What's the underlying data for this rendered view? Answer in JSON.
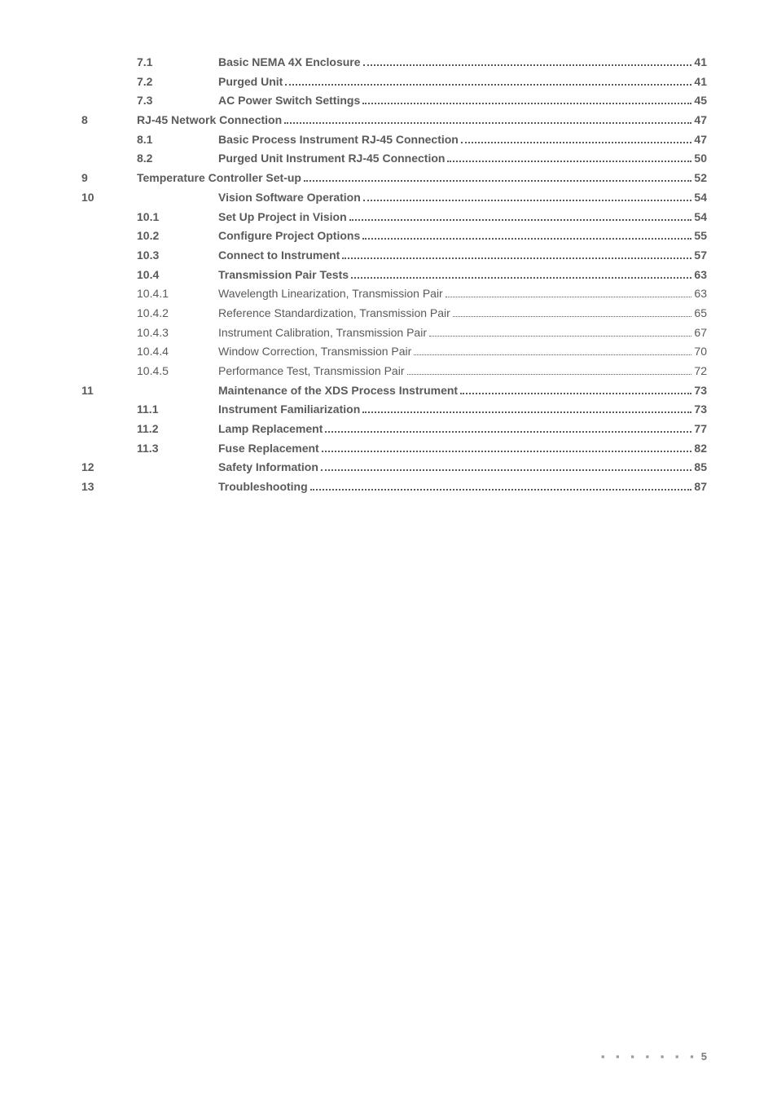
{
  "toc": [
    {
      "type": "sub",
      "num": "",
      "sub": "7.1",
      "title": "Basic NEMA 4X Enclosure",
      "page": "41",
      "bold": true
    },
    {
      "type": "sub",
      "num": "",
      "sub": "7.2",
      "title": "Purged Unit ",
      "page": "41",
      "bold": true
    },
    {
      "type": "sub",
      "num": "",
      "sub": "7.3",
      "title": "AC Power Switch Settings ",
      "page": "45",
      "bold": true
    },
    {
      "type": "chapter",
      "num": "8",
      "sub": "",
      "title": "RJ-45 Network Connection",
      "page": "47",
      "bold": true
    },
    {
      "type": "sub",
      "num": "",
      "sub": "8.1",
      "title": "Basic Process Instrument RJ-45 Connection",
      "page": "47",
      "bold": true
    },
    {
      "type": "sub",
      "num": "",
      "sub": "8.2",
      "title": "Purged Unit Instrument RJ-45 Connection",
      "page": "50",
      "bold": true
    },
    {
      "type": "chapter",
      "num": "9",
      "sub": "",
      "title": "Temperature Controller Set-up",
      "page": "52",
      "bold": true
    },
    {
      "type": "chapter",
      "num": "10",
      "sub": "",
      "title": "Vision Software Operation",
      "page": "54",
      "bold": true,
      "title_indent": true
    },
    {
      "type": "sub",
      "num": "",
      "sub": "10.1",
      "title": "Set Up Project in Vision ",
      "page": "54",
      "bold": true
    },
    {
      "type": "sub",
      "num": "",
      "sub": "10.2",
      "title": "Configure Project Options",
      "page": "55",
      "bold": true
    },
    {
      "type": "sub",
      "num": "",
      "sub": "10.3",
      "title": "Connect to Instrument",
      "page": "57",
      "bold": true
    },
    {
      "type": "sub",
      "num": "",
      "sub": "10.4",
      "title": "Transmission Pair Tests ",
      "page": "63",
      "bold": true
    },
    {
      "type": "sub",
      "num": "",
      "sub": "10.4.1",
      "title": "Wavelength Linearization, Transmission Pair ",
      "page": "63",
      "bold": false
    },
    {
      "type": "sub",
      "num": "",
      "sub": "10.4.2",
      "title": "Reference Standardization, Transmission Pair ",
      "page": "65",
      "bold": false
    },
    {
      "type": "sub",
      "num": "",
      "sub": "10.4.3",
      "title": "Instrument Calibration, Transmission Pair",
      "page": "67",
      "bold": false
    },
    {
      "type": "sub",
      "num": "",
      "sub": "10.4.4",
      "title": "Window Correction, Transmission Pair ",
      "page": "70",
      "bold": false
    },
    {
      "type": "sub",
      "num": "",
      "sub": "10.4.5",
      "title": "Performance Test, Transmission Pair ",
      "page": "72",
      "bold": false
    },
    {
      "type": "chapter",
      "num": "11",
      "sub": "",
      "title": "Maintenance of the XDS Process Instrument",
      "page": "73",
      "bold": true,
      "title_indent": true
    },
    {
      "type": "sub",
      "num": "",
      "sub": "11.1",
      "title": "Instrument Familiarization",
      "page": "73",
      "bold": true
    },
    {
      "type": "sub",
      "num": "",
      "sub": "11.2",
      "title": "Lamp Replacement ",
      "page": "77",
      "bold": true
    },
    {
      "type": "sub",
      "num": "",
      "sub": "11.3",
      "title": "Fuse Replacement",
      "page": "82",
      "bold": true
    },
    {
      "type": "chapter",
      "num": "12",
      "sub": "",
      "title": "Safety Information",
      "page": "85",
      "bold": true,
      "title_indent": true
    },
    {
      "type": "chapter",
      "num": "13",
      "sub": "",
      "title": "Troubleshooting ",
      "page": "87",
      "bold": true,
      "title_indent": true
    }
  ],
  "footer": {
    "page": "5"
  }
}
